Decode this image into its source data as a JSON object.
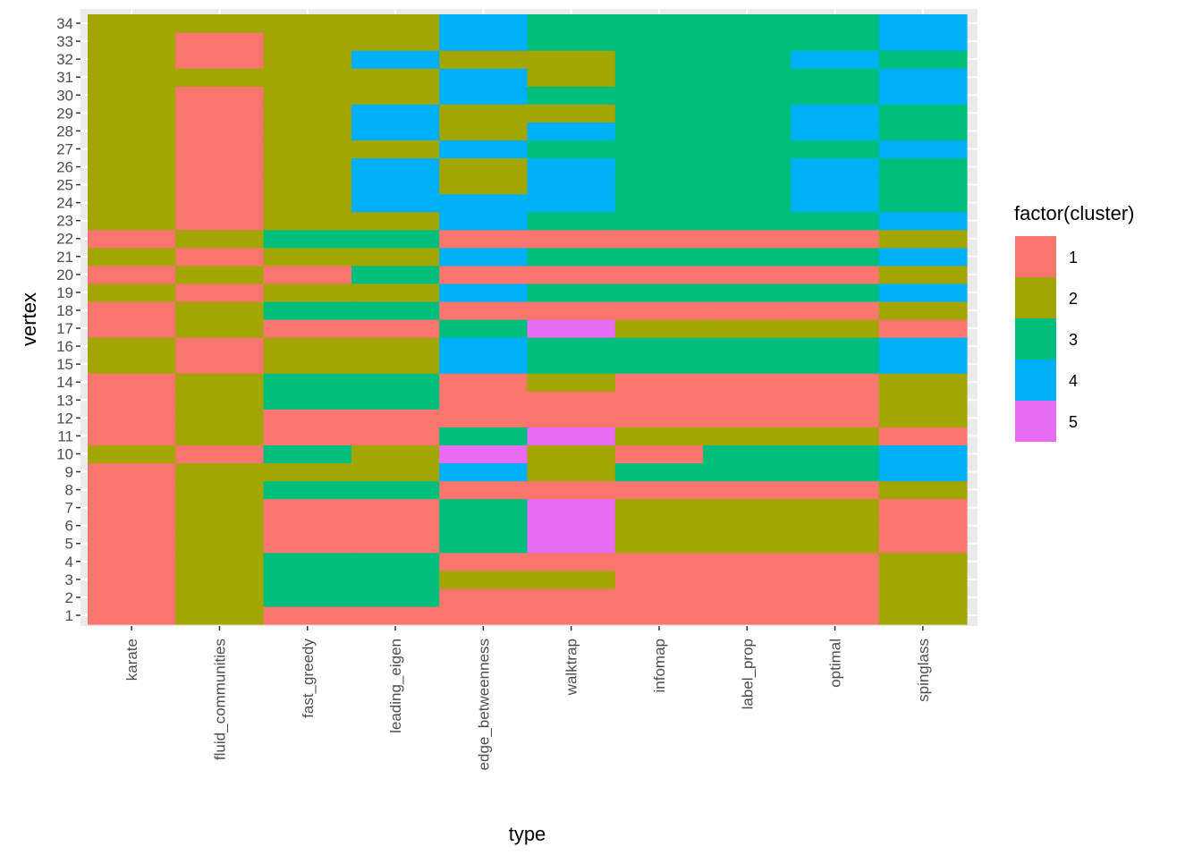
{
  "chart_data": {
    "type": "heatmap",
    "xlabel": "type",
    "ylabel": "vertex",
    "legend": {
      "title": "factor(cluster)",
      "placement": "right",
      "levels": [
        "1",
        "2",
        "3",
        "4",
        "5"
      ],
      "colors": [
        "#F8766D",
        "#A3A500",
        "#00BF7D",
        "#00B0F6",
        "#E76BF3"
      ]
    },
    "x_categories": [
      "karate",
      "fluid_communities",
      "fast_greedy",
      "leading_eigen",
      "edge_betweenness",
      "walktrap",
      "infomap",
      "label_prop",
      "optimal",
      "spinglass"
    ],
    "y_categories": [
      "1",
      "2",
      "3",
      "4",
      "5",
      "6",
      "7",
      "8",
      "9",
      "10",
      "11",
      "12",
      "13",
      "14",
      "15",
      "16",
      "17",
      "18",
      "19",
      "20",
      "21",
      "22",
      "23",
      "24",
      "25",
      "26",
      "27",
      "28",
      "29",
      "30",
      "31",
      "32",
      "33",
      "34"
    ],
    "grid": true,
    "panel_background": "#EBEBEB",
    "series": [
      {
        "name": "karate",
        "values": [
          1,
          1,
          1,
          1,
          1,
          1,
          1,
          1,
          1,
          2,
          1,
          1,
          1,
          1,
          2,
          2,
          1,
          1,
          2,
          1,
          2,
          1,
          2,
          2,
          2,
          2,
          2,
          2,
          2,
          2,
          2,
          2,
          2,
          2
        ]
      },
      {
        "name": "fluid_communities",
        "values": [
          2,
          2,
          2,
          2,
          2,
          2,
          2,
          2,
          2,
          1,
          2,
          2,
          2,
          2,
          1,
          1,
          2,
          2,
          1,
          2,
          1,
          2,
          1,
          1,
          1,
          1,
          1,
          1,
          1,
          1,
          2,
          1,
          1,
          2
        ]
      },
      {
        "name": "fast_greedy",
        "values": [
          1,
          3,
          3,
          3,
          1,
          1,
          1,
          3,
          2,
          3,
          1,
          1,
          3,
          3,
          2,
          2,
          1,
          3,
          2,
          1,
          2,
          3,
          2,
          2,
          2,
          2,
          2,
          2,
          2,
          2,
          2,
          2,
          2,
          2
        ]
      },
      {
        "name": "leading_eigen",
        "values": [
          1,
          3,
          3,
          3,
          1,
          1,
          1,
          3,
          2,
          2,
          1,
          1,
          3,
          3,
          2,
          2,
          1,
          3,
          2,
          3,
          2,
          3,
          2,
          4,
          4,
          4,
          2,
          4,
          4,
          2,
          2,
          4,
          2,
          2
        ]
      },
      {
        "name": "edge_betweenness",
        "values": [
          1,
          1,
          2,
          1,
          3,
          3,
          3,
          1,
          4,
          5,
          3,
          1,
          1,
          1,
          4,
          4,
          3,
          1,
          4,
          1,
          4,
          1,
          4,
          4,
          2,
          2,
          4,
          2,
          2,
          4,
          4,
          2,
          4,
          4
        ]
      },
      {
        "name": "walktrap",
        "values": [
          1,
          1,
          2,
          1,
          5,
          5,
          5,
          1,
          2,
          2,
          5,
          1,
          1,
          2,
          3,
          3,
          5,
          1,
          3,
          1,
          3,
          1,
          3,
          4,
          4,
          4,
          3,
          4,
          2,
          3,
          2,
          2,
          3,
          3
        ]
      },
      {
        "name": "infomap",
        "values": [
          1,
          1,
          1,
          1,
          2,
          2,
          2,
          1,
          3,
          1,
          2,
          1,
          1,
          1,
          3,
          3,
          2,
          1,
          3,
          1,
          3,
          1,
          3,
          3,
          3,
          3,
          3,
          3,
          3,
          3,
          3,
          3,
          3,
          3
        ]
      },
      {
        "name": "label_prop",
        "values": [
          1,
          1,
          1,
          1,
          2,
          2,
          2,
          1,
          3,
          3,
          2,
          1,
          1,
          1,
          3,
          3,
          2,
          1,
          3,
          1,
          3,
          1,
          3,
          3,
          3,
          3,
          3,
          3,
          3,
          3,
          3,
          3,
          3,
          3
        ]
      },
      {
        "name": "optimal",
        "values": [
          1,
          1,
          1,
          1,
          2,
          2,
          2,
          1,
          3,
          3,
          2,
          1,
          1,
          1,
          3,
          3,
          2,
          1,
          3,
          1,
          3,
          1,
          3,
          4,
          4,
          4,
          3,
          4,
          4,
          3,
          3,
          4,
          3,
          3
        ]
      },
      {
        "name": "spinglass",
        "values": [
          2,
          2,
          2,
          2,
          1,
          1,
          1,
          2,
          4,
          4,
          1,
          2,
          2,
          2,
          4,
          4,
          1,
          2,
          4,
          2,
          4,
          2,
          4,
          3,
          3,
          3,
          4,
          3,
          3,
          4,
          4,
          3,
          4,
          4
        ]
      }
    ]
  }
}
